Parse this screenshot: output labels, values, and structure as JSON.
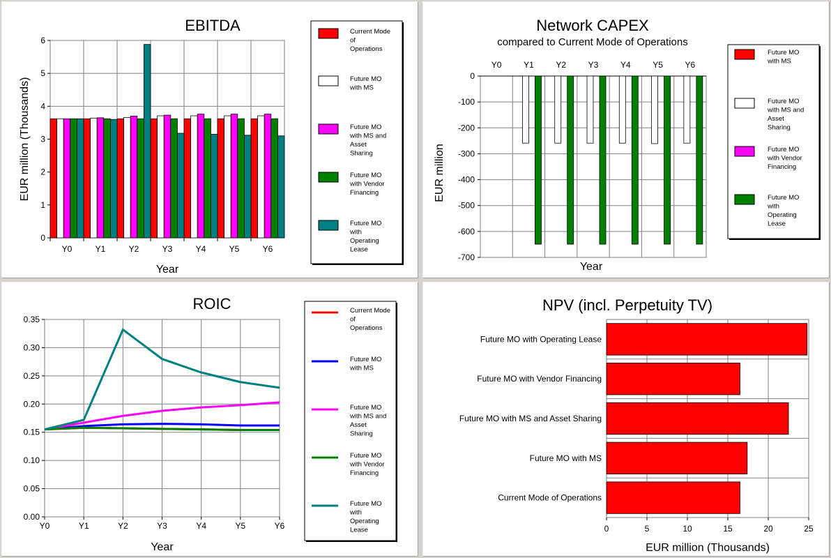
{
  "chart_data": [
    {
      "type": "bar",
      "title": "EBITDA",
      "xlabel": "Year",
      "ylabel": "EUR million  (Thousands)",
      "ylim": [
        0,
        6
      ],
      "yticks": [
        0,
        1,
        2,
        3,
        4,
        5,
        6
      ],
      "grid": true,
      "legend_placement": "right",
      "categories": [
        "Y0",
        "Y1",
        "Y2",
        "Y3",
        "Y4",
        "Y5",
        "Y6"
      ],
      "series": [
        {
          "name": "Current Mode of Operations",
          "color": "#ff0000",
          "values": [
            3.62,
            3.62,
            3.62,
            3.62,
            3.62,
            3.62,
            3.62
          ]
        },
        {
          "name": "Future MO with MS",
          "color": "#ffffff",
          "values": [
            3.62,
            3.64,
            3.66,
            3.71,
            3.71,
            3.71,
            3.71
          ]
        },
        {
          "name": "Future MO with MS and Asset Sharing",
          "color": "#ff00ff",
          "values": [
            3.62,
            3.65,
            3.7,
            3.73,
            3.76,
            3.76,
            3.76
          ]
        },
        {
          "name": "Future MO with Vendor Financing",
          "color": "#008000",
          "values": [
            3.62,
            3.62,
            3.62,
            3.62,
            3.62,
            3.62,
            3.62
          ]
        },
        {
          "name": "Future MO with Operating Lease",
          "color": "#008080",
          "values": [
            3.62,
            3.6,
            5.88,
            3.18,
            3.15,
            3.12,
            3.1
          ]
        }
      ]
    },
    {
      "type": "bar",
      "title": "Network CAPEX",
      "subtitle": "compared to Current Mode of Operations",
      "xlabel": "Year",
      "ylabel": "EUR million",
      "ylim": [
        -700,
        0
      ],
      "yticks": [
        0,
        -100,
        -200,
        -300,
        -400,
        -500,
        -600,
        -700
      ],
      "grid": true,
      "legend_placement": "right",
      "categories": [
        "Y0",
        "Y1",
        "Y2",
        "Y3",
        "Y4",
        "Y5",
        "Y6"
      ],
      "series": [
        {
          "name": "Future MO with MS",
          "color": "#ff0000",
          "values": [
            0,
            0,
            0,
            0,
            0,
            0,
            0
          ]
        },
        {
          "name": "Future MO with MS and Asset Sharing",
          "color": "#ffffff",
          "values": [
            0,
            -259,
            -259,
            -259,
            -259,
            -261,
            -259
          ]
        },
        {
          "name": "Future MO with Vendor Financing",
          "color": "#ff00ff",
          "values": [
            0,
            0,
            0,
            0,
            0,
            0,
            0
          ]
        },
        {
          "name": "Future MO with Operating Lease",
          "color": "#008000",
          "values": [
            0,
            -649,
            -649,
            -649,
            -649,
            -649,
            -649
          ]
        }
      ]
    },
    {
      "type": "line",
      "title": "ROIC",
      "xlabel": "Year",
      "ylabel": "",
      "ylim": [
        0,
        0.35
      ],
      "yticks": [
        "0.00",
        "0.05",
        "0.10",
        "0.15",
        "0.20",
        "0.25",
        "0.30",
        "0.35"
      ],
      "grid": true,
      "legend_placement": "right",
      "categories": [
        "Y0",
        "Y1",
        "Y2",
        "Y3",
        "Y4",
        "Y5",
        "Y6"
      ],
      "series": [
        {
          "name": "Current Mode of Operations",
          "color": "#ff0000",
          "values": [
            0.155,
            0.158,
            0.157,
            0.156,
            0.155,
            0.154,
            0.154
          ]
        },
        {
          "name": "Future MO with MS",
          "color": "#0000ff",
          "values": [
            0.155,
            0.161,
            0.164,
            0.165,
            0.164,
            0.162,
            0.162
          ]
        },
        {
          "name": "Future MO with MS and Asset Sharing",
          "color": "#ff00ff",
          "values": [
            0.155,
            0.167,
            0.179,
            0.188,
            0.194,
            0.198,
            0.203
          ]
        },
        {
          "name": "Future MO with Vendor Financing",
          "color": "#008000",
          "values": [
            0.155,
            0.158,
            0.157,
            0.156,
            0.155,
            0.154,
            0.154
          ]
        },
        {
          "name": "Future MO with Operating Lease",
          "color": "#008080",
          "values": [
            0.155,
            0.172,
            0.332,
            0.28,
            0.256,
            0.239,
            0.229
          ]
        }
      ]
    },
    {
      "type": "bar",
      "orientation": "horizontal",
      "title": "NPV (incl. Perpetuity TV)",
      "xlabel": "EUR million  (Thousands)",
      "ylabel": "",
      "xlim": [
        0,
        25
      ],
      "xticks": [
        0,
        5,
        10,
        15,
        20,
        25
      ],
      "grid": true,
      "color": "#ff0000",
      "categories": [
        "Future MO with Operating Lease",
        "Future MO with Vendor Financing",
        "Future MO with MS and Asset Sharing",
        "Future MO with MS",
        "Current Mode of Operations"
      ],
      "values": [
        24.8,
        16.5,
        22.5,
        17.4,
        16.5
      ]
    }
  ]
}
